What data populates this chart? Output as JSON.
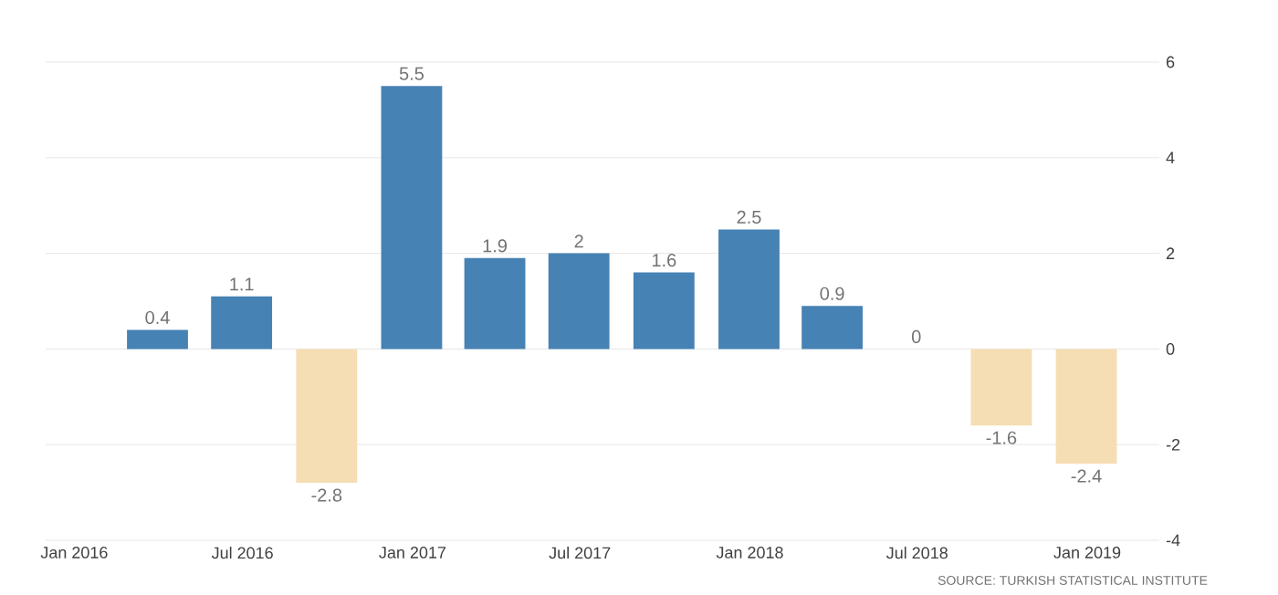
{
  "chart_data": {
    "type": "bar",
    "x": [
      "2016-03-31",
      "2016-06-30",
      "2016-09-30",
      "2016-12-31",
      "2017-03-31",
      "2017-06-30",
      "2017-09-30",
      "2017-12-31",
      "2018-03-31",
      "2018-06-30",
      "2018-09-30",
      "2018-12-31"
    ],
    "values": [
      0.4,
      1.1,
      -2.8,
      5.5,
      1.9,
      2,
      1.6,
      2.5,
      0.9,
      0,
      -1.6,
      -2.4
    ],
    "colors": [
      "#4682b4",
      "#4682b4",
      "#f5deb3",
      "#4682b4",
      "#4682b4",
      "#4682b4",
      "#4682b4",
      "#4682b4",
      "#4682b4",
      "#4682b4",
      "#f5deb3",
      "#f5deb3"
    ],
    "ylim": [
      -4,
      6
    ],
    "yticks": [
      -4,
      -2,
      0,
      2,
      4,
      6
    ],
    "xlim": [
      "2015-12-01",
      "2019-03-20"
    ],
    "xticks": [
      {
        "value": "2016-01-01",
        "label": "Jan 2016"
      },
      {
        "value": "2016-07-01",
        "label": "Jul 2016"
      },
      {
        "value": "2017-01-01",
        "label": "Jan 2017"
      },
      {
        "value": "2017-07-01",
        "label": "Jul 2017"
      },
      {
        "value": "2018-01-01",
        "label": "Jan 2018"
      },
      {
        "value": "2018-07-01",
        "label": "Jul 2018"
      },
      {
        "value": "2019-01-01",
        "label": "Jan 2019"
      }
    ],
    "grid": "y",
    "data_labels": true,
    "annotations": [
      "SOURCE: TURKISH STATISTICAL INSTITUTE"
    ]
  }
}
